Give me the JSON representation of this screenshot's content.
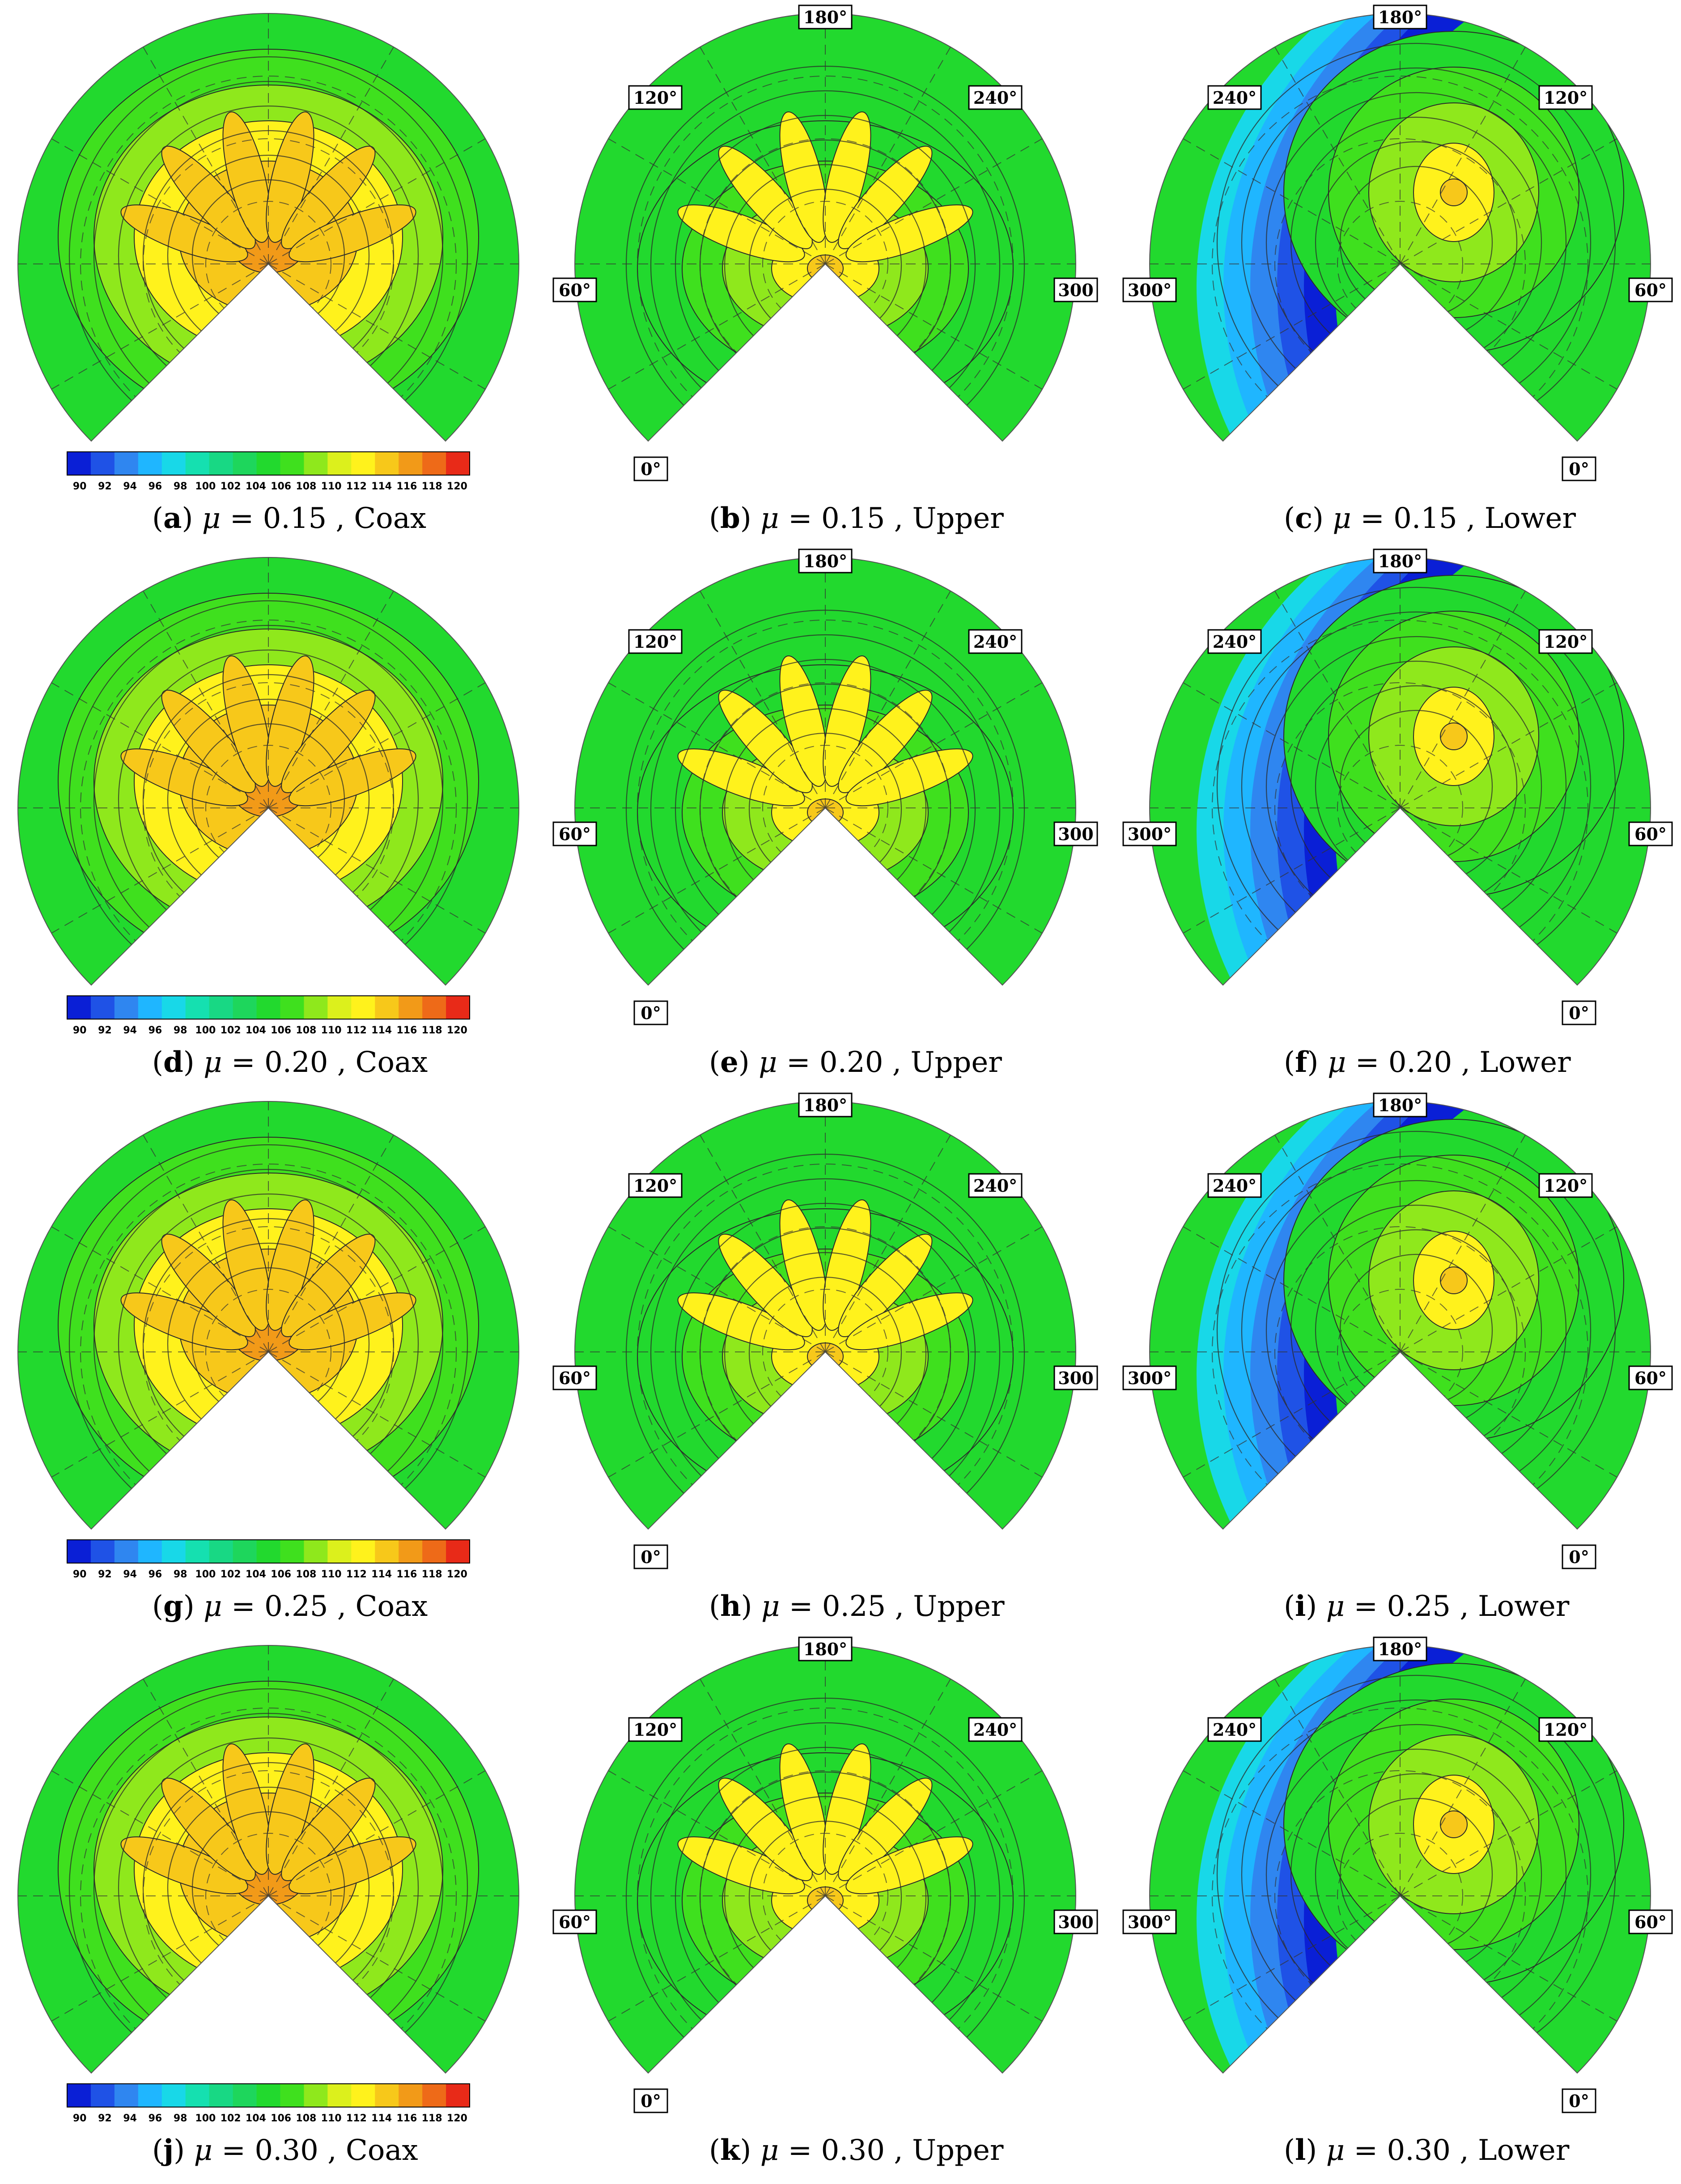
{
  "colorbar": {
    "ticks": [
      "90",
      "92",
      "94",
      "96",
      "98",
      "100",
      "102",
      "104",
      "106",
      "108",
      "110",
      "112",
      "114",
      "116",
      "118",
      "120"
    ],
    "colors": [
      "#0a1fd6",
      "#1f52e6",
      "#2f86f0",
      "#1fb6ff",
      "#18d8e8",
      "#15e0b0",
      "#18d884",
      "#1ed65c",
      "#22d92e",
      "#3fe01e",
      "#8fe81c",
      "#dcf01c",
      "#fff21c",
      "#f7c81a",
      "#f29a18",
      "#ee6a18",
      "#e82a18"
    ]
  },
  "panels": [
    {
      "letter": "a",
      "mu": "0.15",
      "rotor": "Coax",
      "labels": []
    },
    {
      "letter": "b",
      "mu": "0.15",
      "rotor": "Upper",
      "labels": [
        "180°",
        "120°",
        "240°",
        "60°",
        "300",
        "0°"
      ]
    },
    {
      "letter": "c",
      "mu": "0.15",
      "rotor": "Lower",
      "labels": [
        "180°",
        "240°",
        "120°",
        "300°",
        "60°",
        "0°"
      ]
    },
    {
      "letter": "d",
      "mu": "0.20",
      "rotor": "Coax",
      "labels": []
    },
    {
      "letter": "e",
      "mu": "0.20",
      "rotor": "Upper",
      "labels": [
        "180°",
        "120°",
        "240°",
        "60°",
        "300",
        "0°"
      ]
    },
    {
      "letter": "f",
      "mu": "0.20",
      "rotor": "Lower",
      "labels": [
        "180°",
        "240°",
        "120°",
        "300°",
        "60°",
        "0°"
      ]
    },
    {
      "letter": "g",
      "mu": "0.25",
      "rotor": "Coax",
      "labels": []
    },
    {
      "letter": "h",
      "mu": "0.25",
      "rotor": "Upper",
      "labels": [
        "180°",
        "120°",
        "240°",
        "60°",
        "300",
        "0°"
      ]
    },
    {
      "letter": "i",
      "mu": "0.25",
      "rotor": "Lower",
      "labels": [
        "180°",
        "240°",
        "120°",
        "300°",
        "60°",
        "0°"
      ]
    },
    {
      "letter": "j",
      "mu": "0.30",
      "rotor": "Coax",
      "labels": []
    },
    {
      "letter": "k",
      "mu": "0.30",
      "rotor": "Upper",
      "labels": [
        "180°",
        "120°",
        "240°",
        "60°",
        "300",
        "0°"
      ]
    },
    {
      "letter": "l",
      "mu": "0.30",
      "rotor": "Lower",
      "labels": [
        "180°",
        "240°",
        "120°",
        "300°",
        "60°",
        "0°"
      ]
    }
  ],
  "mu_symbol": "μ",
  "equals": "=",
  "comma": ","
}
